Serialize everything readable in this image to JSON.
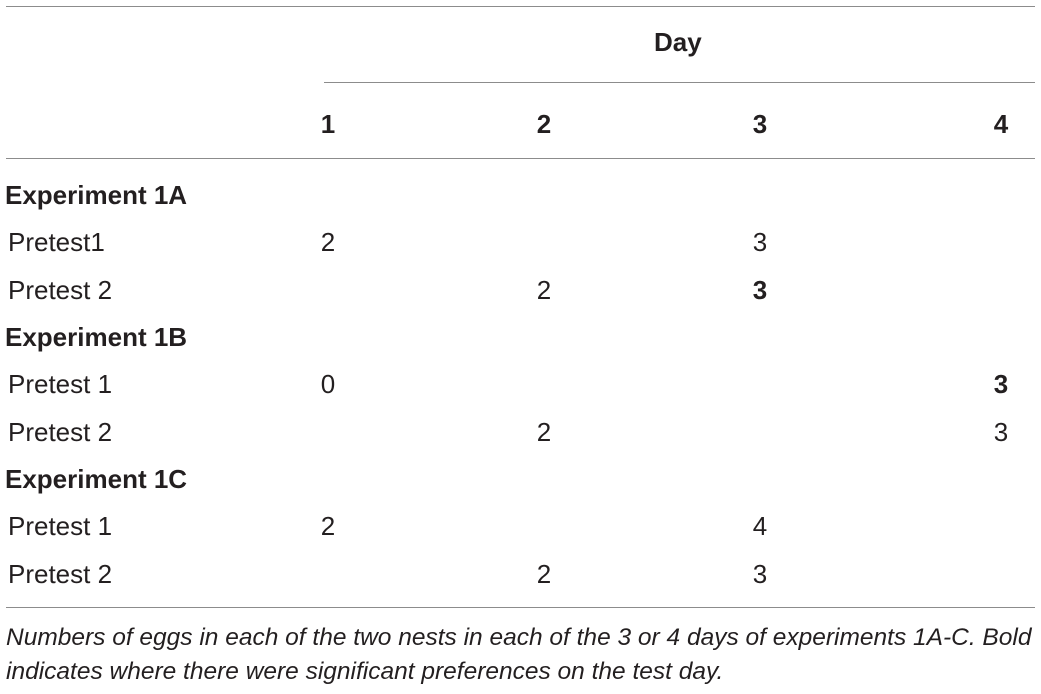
{
  "table": {
    "spanning_header": "Day",
    "columns": [
      "1",
      "2",
      "3",
      "4"
    ],
    "sections": [
      {
        "title": "Experiment 1A",
        "rows": [
          {
            "label": "Pretest1",
            "values": [
              "2",
              "",
              "3",
              ""
            ],
            "bold": [
              false,
              false,
              false,
              false
            ]
          },
          {
            "label": "Pretest 2",
            "values": [
              "",
              "2",
              "3",
              ""
            ],
            "bold": [
              false,
              false,
              true,
              false
            ]
          }
        ]
      },
      {
        "title": "Experiment 1B",
        "rows": [
          {
            "label": "Pretest 1",
            "values": [
              "0",
              "",
              "",
              "3"
            ],
            "bold": [
              false,
              false,
              false,
              true
            ]
          },
          {
            "label": "Pretest 2",
            "values": [
              "",
              "2",
              "",
              "3"
            ],
            "bold": [
              false,
              false,
              false,
              false
            ]
          }
        ]
      },
      {
        "title": "Experiment 1C",
        "rows": [
          {
            "label": "Pretest 1",
            "values": [
              "2",
              "",
              "4",
              ""
            ],
            "bold": [
              false,
              false,
              false,
              false
            ]
          },
          {
            "label": "Pretest 2",
            "values": [
              "",
              "2",
              "3",
              ""
            ],
            "bold": [
              false,
              false,
              false,
              false
            ]
          }
        ]
      }
    ]
  },
  "caption": "Numbers of eggs in each of the two nests in each of the 3 or 4 days of experiments 1A-C. Bold indicates where there were significant preferences on the test day."
}
